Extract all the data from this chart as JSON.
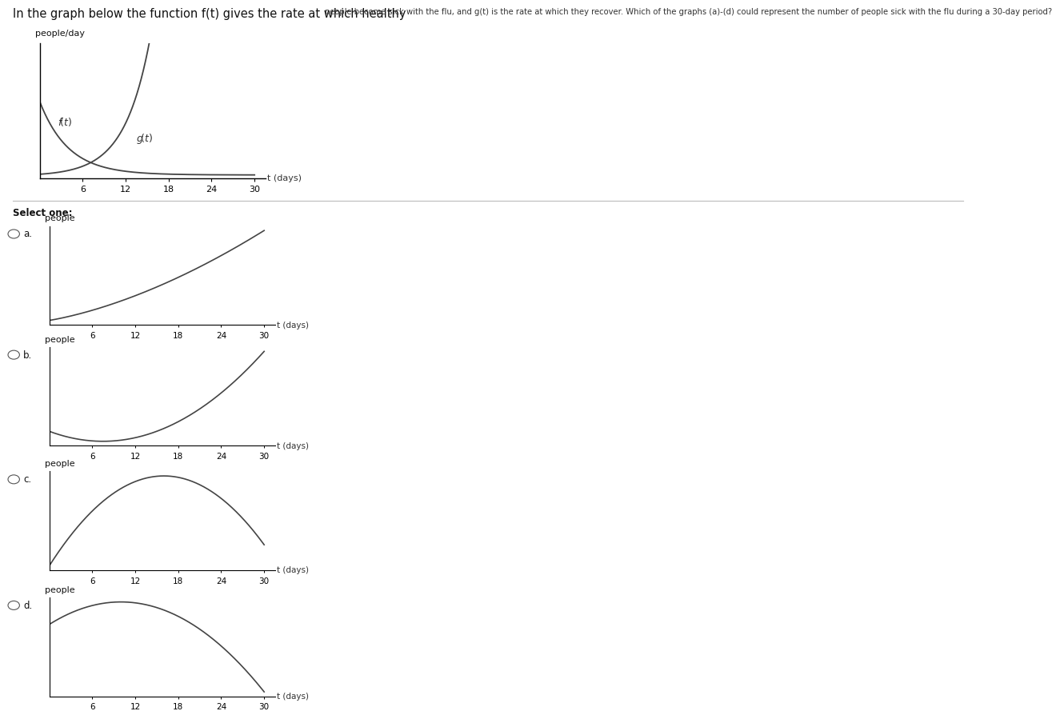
{
  "title_large": "In the graph below the function f(t) gives the rate at which healthy ",
  "title_small": "people become sick with the flu, and g(t) is the rate at which they recover. Which of the graphs (a)-(d) could represent the number of people sick with the flu during a 30-day period?",
  "main_ylabel": "people/day",
  "sub_ylabel": "people",
  "xlabel": "t (days)",
  "xticks": [
    6,
    12,
    18,
    24,
    30
  ],
  "select_text": "Select one:",
  "options": [
    "a.",
    "b.",
    "c.",
    "d."
  ],
  "bg_color": "#ffffff",
  "curve_color": "#444444",
  "axis_color": "#333333",
  "font_size_main": 11,
  "font_size_small": 8
}
